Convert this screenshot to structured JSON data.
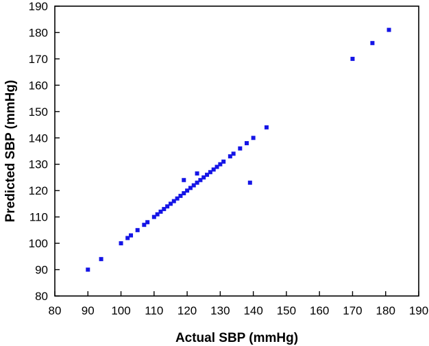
{
  "chart_data": {
    "type": "scatter",
    "title": "",
    "xlabel": "Actual SBP (mmHg)",
    "ylabel": "Predicted SBP (mmHg)",
    "xlim": [
      80,
      190
    ],
    "ylim": [
      80,
      190
    ],
    "xticks": [
      "80",
      "90",
      "100",
      "110",
      "120",
      "130",
      "140",
      "150",
      "160",
      "170",
      "180",
      "190"
    ],
    "yticks": [
      "80",
      "90",
      "100",
      "110",
      "120",
      "130",
      "140",
      "150",
      "160",
      "170",
      "180",
      "190"
    ],
    "grid": false,
    "legend": "none",
    "marker_color": "#1515e6",
    "points": [
      {
        "x": 90,
        "y": 90
      },
      {
        "x": 94,
        "y": 94
      },
      {
        "x": 100,
        "y": 100
      },
      {
        "x": 102,
        "y": 102
      },
      {
        "x": 103,
        "y": 103
      },
      {
        "x": 105,
        "y": 105
      },
      {
        "x": 107,
        "y": 107
      },
      {
        "x": 108,
        "y": 108
      },
      {
        "x": 110,
        "y": 110
      },
      {
        "x": 111,
        "y": 111
      },
      {
        "x": 112,
        "y": 112
      },
      {
        "x": 113,
        "y": 113
      },
      {
        "x": 114,
        "y": 114
      },
      {
        "x": 115,
        "y": 115
      },
      {
        "x": 116,
        "y": 116
      },
      {
        "x": 117,
        "y": 117
      },
      {
        "x": 118,
        "y": 118
      },
      {
        "x": 119,
        "y": 119
      },
      {
        "x": 119,
        "y": 124
      },
      {
        "x": 120,
        "y": 120
      },
      {
        "x": 121,
        "y": 121
      },
      {
        "x": 122,
        "y": 122
      },
      {
        "x": 123,
        "y": 123
      },
      {
        "x": 123,
        "y": 126.5
      },
      {
        "x": 124,
        "y": 124
      },
      {
        "x": 125,
        "y": 125
      },
      {
        "x": 126,
        "y": 126
      },
      {
        "x": 127,
        "y": 127
      },
      {
        "x": 128,
        "y": 128
      },
      {
        "x": 129,
        "y": 129
      },
      {
        "x": 130,
        "y": 130
      },
      {
        "x": 131,
        "y": 131
      },
      {
        "x": 133,
        "y": 133
      },
      {
        "x": 134,
        "y": 134
      },
      {
        "x": 136,
        "y": 136
      },
      {
        "x": 138,
        "y": 138
      },
      {
        "x": 139,
        "y": 123
      },
      {
        "x": 140,
        "y": 140
      },
      {
        "x": 144,
        "y": 144
      },
      {
        "x": 170,
        "y": 170
      },
      {
        "x": 176,
        "y": 176
      },
      {
        "x": 181,
        "y": 181
      }
    ]
  }
}
